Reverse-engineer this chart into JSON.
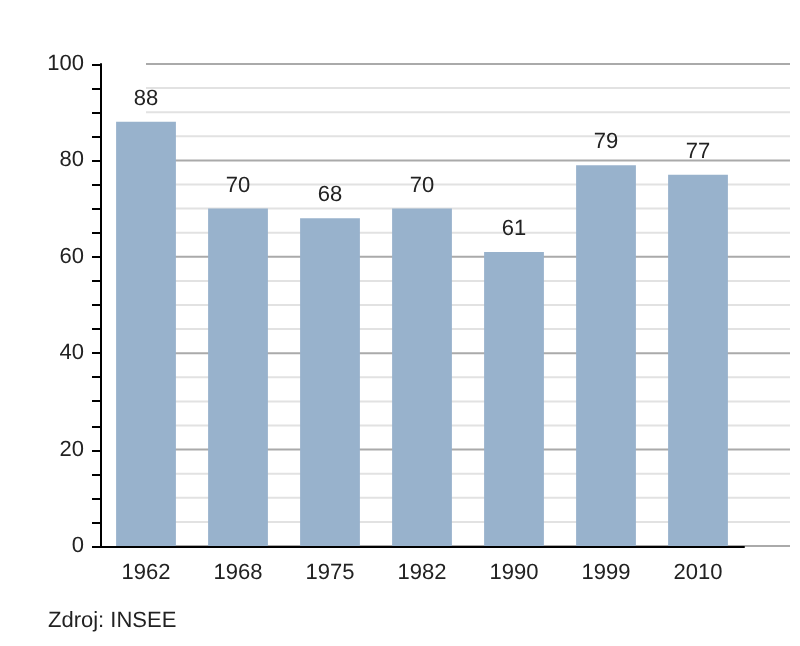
{
  "chart_data": {
    "type": "bar",
    "categories": [
      "1962",
      "1968",
      "1975",
      "1982",
      "1990",
      "1999",
      "2010"
    ],
    "values": [
      88,
      70,
      68,
      70,
      61,
      79,
      77
    ],
    "color": "#98b2cc",
    "data_labels": true,
    "ylim": [
      0,
      100
    ],
    "yticks": [
      0,
      {
        "value": 5,
        "label": null
      },
      {
        "value": 10,
        "label": null
      },
      {
        "value": 15,
        "label": null
      },
      20,
      {
        "value": 25,
        "label": null
      },
      {
        "value": 30,
        "label": null
      },
      {
        "value": 35,
        "label": null
      },
      40,
      {
        "value": 45,
        "label": null
      },
      {
        "value": 50,
        "label": null
      },
      {
        "value": 55,
        "label": null
      },
      60,
      {
        "value": 65,
        "label": null
      },
      {
        "value": 70,
        "label": null
      },
      {
        "value": 75,
        "label": null
      },
      80,
      {
        "value": 85,
        "label": null
      },
      {
        "value": 90,
        "label": null
      },
      {
        "value": 95,
        "label": null
      },
      100
    ],
    "grid": "y",
    "annotations": [
      "Zdroj: INSEE"
    ]
  }
}
